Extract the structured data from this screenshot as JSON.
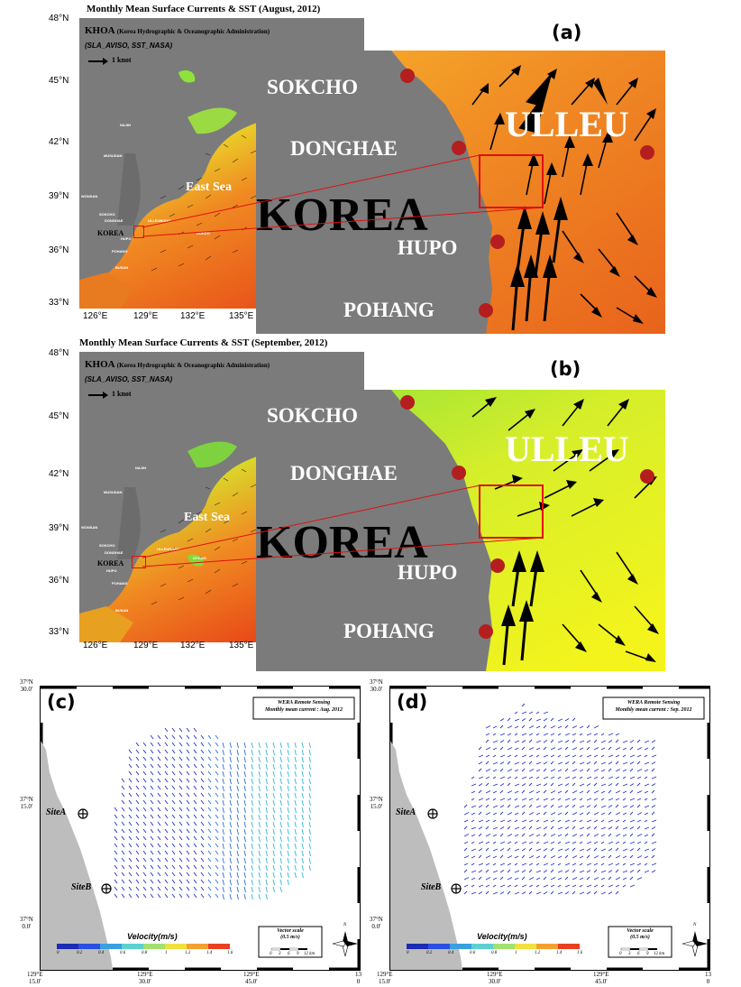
{
  "panels": {
    "a": {
      "letter": "(a)",
      "title": "Monthly Mean Surface Currents & SST (August, 2012)",
      "agency": "KHOA",
      "agency_full": "(Korea Hydrographic & Oceanographic Administration)",
      "sources": "(SLA_AVISO, SST_NASA)",
      "vector_ref": "1 knot",
      "sea_label": "East Sea",
      "korea_label": "KOREA"
    },
    "b": {
      "letter": "(b)",
      "title": "Monthly Mean Surface Currents & SST (September, 2012)",
      "agency": "KHOA",
      "agency_full": "(Korea Hydrographic & Oceanographic Administration)",
      "sources": "(SLA_AVISO, SST_NASA)",
      "vector_ref": "1 knot",
      "sea_label": "East Sea",
      "korea_label": "KOREA"
    },
    "c": {
      "letter": "(c)",
      "wera_title": "WERA Remote Sensing",
      "wera_subtitle": "Monthly mean current : Aug. 2012"
    },
    "d": {
      "letter": "(d)",
      "wera_title": "WERA Remote Sensing",
      "wera_subtitle": "Monthly mean current : Sep. 2012"
    }
  },
  "overview_map": {
    "lat_labels": [
      "48°N",
      "45°N",
      "42°N",
      "39°N",
      "36°N",
      "33°N"
    ],
    "lon_labels": [
      "126°E",
      "129°E",
      "132°E",
      "135°E"
    ],
    "small_places": [
      "NAJIN",
      "MUSUDAN",
      "WONSAN",
      "SOKCHO",
      "DONGHAE",
      "HUPO",
      "POHANG",
      "BUSAN",
      "ULLEUNGDO",
      "DOKDO"
    ]
  },
  "zoom_places": [
    "SOKCHO",
    "DONGHAE",
    "KOREA",
    "HUPO",
    "POHANG",
    "ULLEU"
  ],
  "radar": {
    "lat_labels": [
      {
        "deg": "37°N",
        "min": "30.0'"
      },
      {
        "deg": "37°N",
        "min": "15.0'"
      },
      {
        "deg": "37°N",
        "min": "0.0'"
      }
    ],
    "lon_labels": [
      {
        "deg": "129°E",
        "min": "15.0'"
      },
      {
        "deg": "129°E",
        "min": "30.0'"
      },
      {
        "deg": "129°E",
        "min": "45.0'"
      }
    ],
    "lon_labels_cut": {
      "deg": "13",
      "min": "0"
    },
    "sites": [
      "SiteA",
      "SiteB"
    ],
    "velocity_title": "Velocity(m/s)",
    "velocity_ticks": [
      "0",
      "0.2",
      "0.4",
      "0.6",
      "0.8",
      "1",
      "1.2",
      "1.4",
      "1.6"
    ],
    "vector_scale_title": "Vector scale",
    "vector_scale_value": "(0.5 m/s)",
    "km_ticks": [
      "0",
      "3",
      "6",
      "9",
      "12 km"
    ],
    "north": "N"
  },
  "colors": {
    "land_gray": "#7b7b7b",
    "sst_warm": "#e8781e",
    "sst_cool_green": "#8fe23a",
    "sst_yellow": "#f0f020",
    "box_red": "#e01010",
    "site_dot": "#b51e1e",
    "radar_land": "#bdbdbd",
    "vector_blue": "#2030d0",
    "vector_cyan": "#30b8d8"
  }
}
